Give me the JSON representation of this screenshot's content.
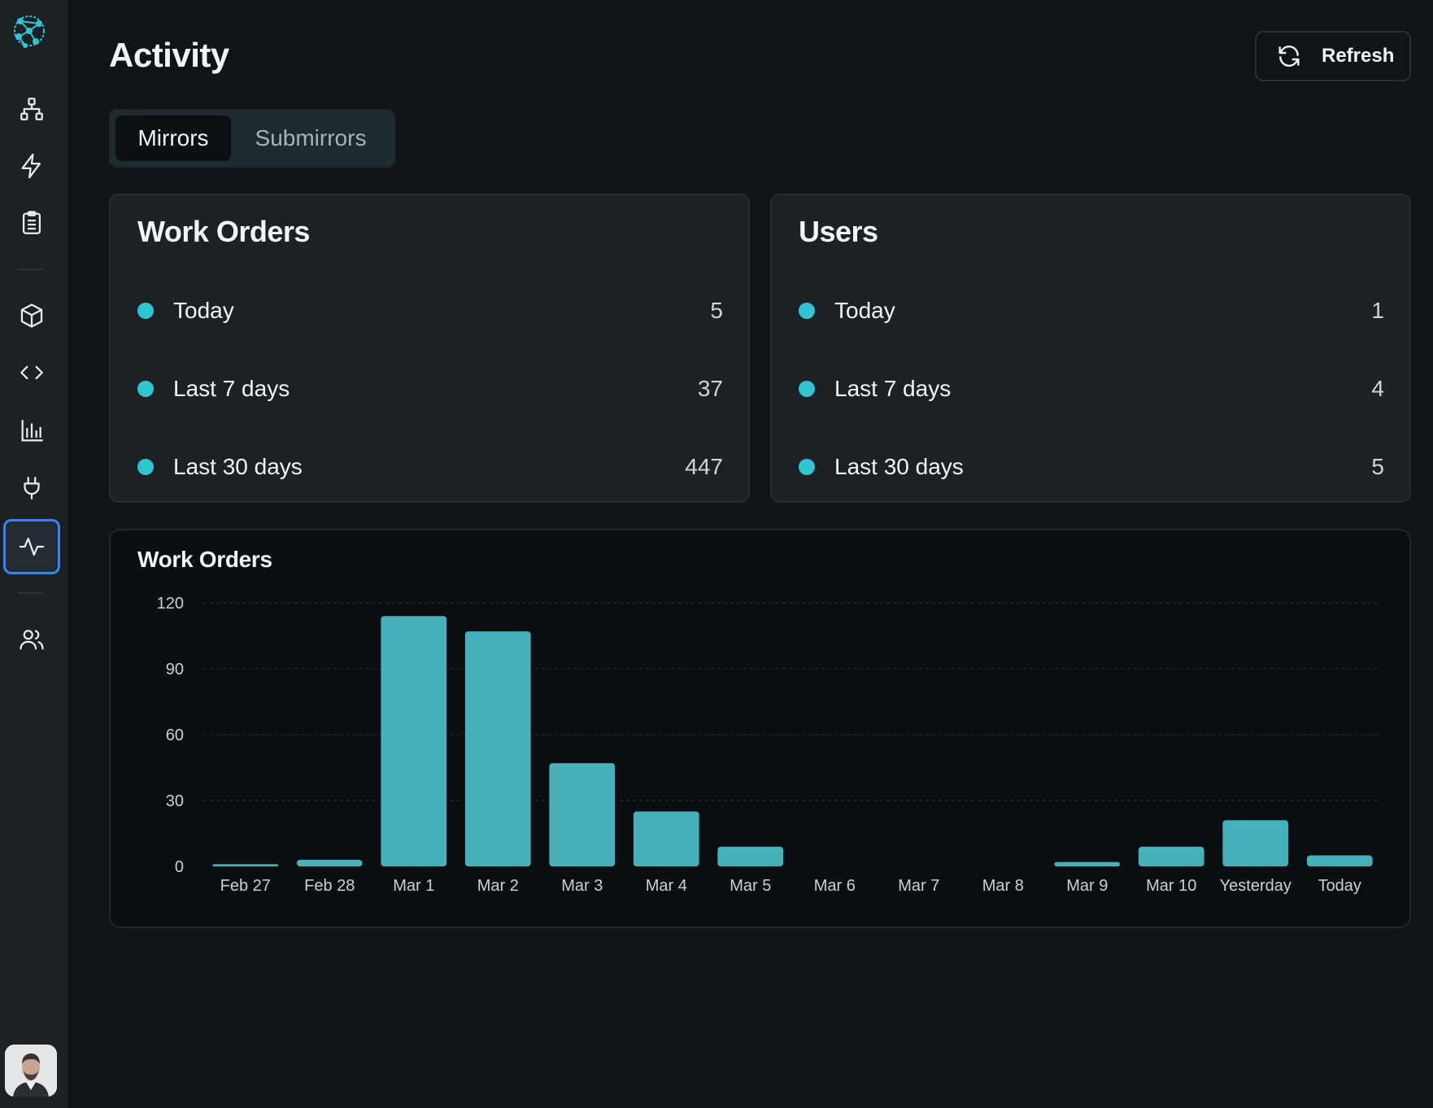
{
  "sidebar": {
    "items": [
      {
        "icon": "sitemap-icon",
        "name": "sidebar-item-hierarchy"
      },
      {
        "icon": "lightning-icon",
        "name": "sidebar-item-triggers"
      },
      {
        "icon": "clipboard-icon",
        "name": "sidebar-item-tasks"
      },
      {
        "icon": "cube-icon",
        "name": "sidebar-item-packages"
      },
      {
        "icon": "code-icon",
        "name": "sidebar-item-code"
      },
      {
        "icon": "bar-chart-icon",
        "name": "sidebar-item-analytics"
      },
      {
        "icon": "plug-icon",
        "name": "sidebar-item-integrations"
      },
      {
        "icon": "activity-icon",
        "name": "sidebar-item-activity",
        "active": true
      },
      {
        "icon": "users-icon",
        "name": "sidebar-item-users"
      }
    ]
  },
  "header": {
    "title": "Activity",
    "refresh_label": "Refresh"
  },
  "tabs": [
    {
      "label": "Mirrors",
      "active": true
    },
    {
      "label": "Submirrors",
      "active": false
    }
  ],
  "work_orders_card": {
    "title": "Work Orders",
    "rows": [
      {
        "label": "Today",
        "value": "5"
      },
      {
        "label": "Last 7 days",
        "value": "37"
      },
      {
        "label": "Last 30 days",
        "value": "447"
      }
    ]
  },
  "users_card": {
    "title": "Users",
    "rows": [
      {
        "label": "Today",
        "value": "1"
      },
      {
        "label": "Last 7 days",
        "value": "4"
      },
      {
        "label": "Last 30 days",
        "value": "5"
      }
    ]
  },
  "colors": {
    "accent": "#2fc5d2",
    "bar": "#46b1bb",
    "active_border": "#3b82f6"
  },
  "chart_data": {
    "type": "bar",
    "title": "Work Orders",
    "categories": [
      "Feb 27",
      "Feb 28",
      "Mar 1",
      "Mar 2",
      "Mar 3",
      "Mar 4",
      "Mar 5",
      "Mar 6",
      "Mar 7",
      "Mar 8",
      "Mar 9",
      "Mar 10",
      "Yesterday",
      "Today"
    ],
    "values": [
      1,
      3,
      114,
      107,
      47,
      25,
      9,
      0,
      0,
      0,
      2,
      9,
      21,
      5
    ],
    "ylim": [
      0,
      120
    ],
    "yticks": [
      0,
      30,
      60,
      90,
      120
    ],
    "grid": true,
    "xlabel": "",
    "ylabel": ""
  }
}
